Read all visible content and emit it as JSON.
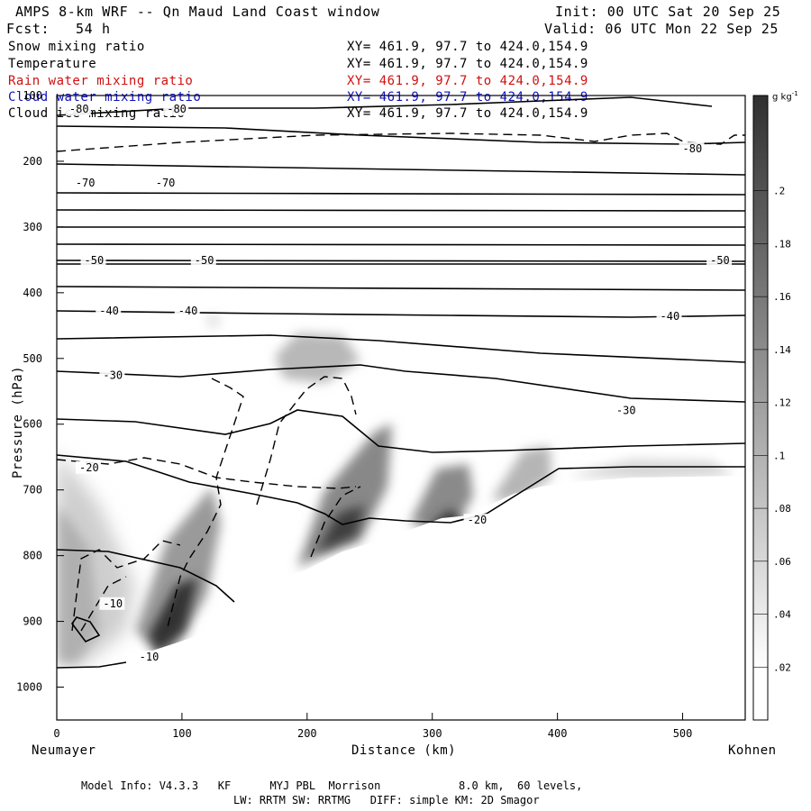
{
  "header": {
    "title": "AMPS 8-km WRF -- Qn Maud Land Coast window",
    "init": "Init: 00 UTC Sat 20 Sep 25",
    "fcst": "Fcst:   54 h",
    "valid": "Valid: 06 UTC Mon 22 Sep 25"
  },
  "fields": [
    {
      "name": "Snow mixing ratio",
      "xy": "XY= 461.9, 97.7 to 424.0,154.9",
      "color": "#000000"
    },
    {
      "name": "Temperature",
      "xy": "XY= 461.9, 97.7 to 424.0,154.9",
      "color": "#000000"
    },
    {
      "name": "Rain water mixing ratio",
      "xy": "XY= 461.9, 97.7 to 424.0,154.9",
      "color": "#d01010"
    },
    {
      "name": "Cloud water mixing ratio",
      "xy": "XY= 461.9, 97.7 to 424.0,154.9",
      "color": "#1010c0"
    },
    {
      "name": "Cloud ice mixing ratio",
      "xy": "XY= 461.9, 97.7 to 424.0,154.9",
      "color": "#000000"
    }
  ],
  "chart_data": {
    "type": "cross-section",
    "xlabel": "Distance (km)",
    "ylabel": "Pressure (hPa)",
    "x_range": [
      0,
      550
    ],
    "y_range": [
      1050,
      100
    ],
    "x_ticks": [
      0,
      100,
      200,
      300,
      400,
      500
    ],
    "y_ticks": [
      100,
      200,
      300,
      400,
      500,
      600,
      700,
      800,
      900,
      1000
    ],
    "x_tick_labels": [
      "0",
      "100",
      "200",
      "300",
      "400",
      "500"
    ],
    "y_tick_labels": [
      "100",
      "200",
      "300",
      "400",
      "500",
      "600",
      "700",
      "800",
      "900",
      "1000"
    ],
    "endpoints": {
      "left": "Neumayer",
      "right": "Kohnen"
    },
    "colorbar": {
      "unit": "g kg",
      "unit_exp": "-1",
      "levels": [
        0.02,
        0.04,
        0.06,
        0.08,
        0.1,
        0.12,
        0.14,
        0.16,
        0.18,
        0.2
      ],
      "labels": [
        ".02",
        ".04",
        ".06",
        ".08",
        ".1",
        ".12",
        ".14",
        ".16",
        ".18",
        ".2"
      ]
    },
    "temperature_contour_labels": [
      {
        "text": "-80",
        "x": 10,
        "p": 125
      },
      {
        "text": "-80",
        "x": 88,
        "p": 125
      },
      {
        "text": "-80",
        "x": 500,
        "p": 185
      },
      {
        "text": "-70",
        "x": 15,
        "p": 237
      },
      {
        "text": "-70",
        "x": 79,
        "p": 237
      },
      {
        "text": "-50",
        "x": 22,
        "p": 355
      },
      {
        "text": "-50",
        "x": 110,
        "p": 355
      },
      {
        "text": "-50",
        "x": 522,
        "p": 355
      },
      {
        "text": "-40",
        "x": 34,
        "p": 432
      },
      {
        "text": "-40",
        "x": 97,
        "p": 432
      },
      {
        "text": "-40",
        "x": 482,
        "p": 440
      },
      {
        "text": "-30",
        "x": 37,
        "p": 530
      },
      {
        "text": "-30",
        "x": 447,
        "p": 583
      },
      {
        "text": "-20",
        "x": 18,
        "p": 670
      },
      {
        "text": "-20",
        "x": 328,
        "p": 750
      },
      {
        "text": "-10",
        "x": 37,
        "p": 877
      },
      {
        "text": "-10",
        "x": 66,
        "p": 958
      }
    ]
  },
  "footer": {
    "model": "Model Info: V4.3.3   KF      MYJ PBL  Morrison            8.0 km,  60 levels,",
    "physics": "LW: RRTM SW: RRTMG   DIFF: simple KM: 2D Smagor"
  }
}
